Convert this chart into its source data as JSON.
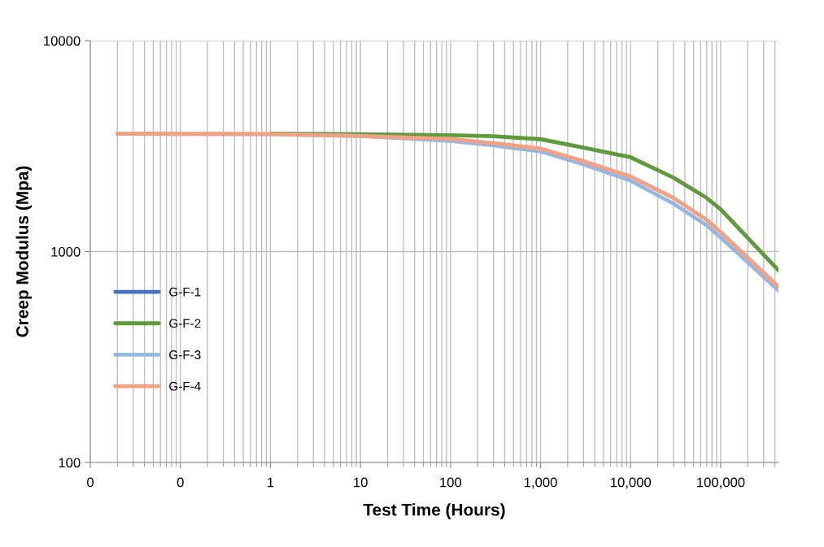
{
  "chart_data": {
    "type": "line",
    "xlabel": "Test Time (Hours)",
    "ylabel": "Creep Modulus (Mpa)",
    "log": "xy",
    "grid": true,
    "legend": "left",
    "marker": "none",
    "line_style": "solid",
    "x": [
      0.02,
      1,
      10,
      100,
      300,
      1000,
      3000,
      10000,
      30000,
      70000,
      100000,
      438000
    ],
    "xlim": [
      0.01,
      438000
    ],
    "xticks": [
      {
        "value": 0.01,
        "label": "0"
      },
      {
        "value": 0.1,
        "label": "0"
      },
      1,
      10,
      100,
      {
        "value": 1000,
        "label": "1,000"
      },
      {
        "value": 10000,
        "label": "10,000"
      },
      {
        "value": 100000,
        "label": "100,000"
      }
    ],
    "ylim": [
      100,
      10000
    ],
    "yticks": [
      100,
      1000,
      10000
    ],
    "series": [
      {
        "name": "G-F-1",
        "color": "#4472c4",
        "values": [
          null,
          null,
          null,
          null,
          null,
          null,
          null,
          null,
          null,
          null,
          null,
          null
        ]
      },
      {
        "name": "G-F-2",
        "color": "#5f9a3c",
        "values": [
          null,
          3620,
          3600,
          3560,
          3520,
          3410,
          3110,
          2800,
          2240,
          1796,
          1586,
          815
        ]
      },
      {
        "name": "G-F-3",
        "color": "#94b8e2",
        "values": [
          3620,
          3600,
          3530,
          3350,
          3185,
          2985,
          2590,
          2168,
          1687,
          1332,
          1166,
          653
        ]
      },
      {
        "name": "G-F-4",
        "color": "#f2a283",
        "values": [
          3620,
          3610,
          3530,
          3420,
          3265,
          3080,
          2680,
          2270,
          1796,
          1413,
          1237,
          682
        ]
      }
    ]
  }
}
